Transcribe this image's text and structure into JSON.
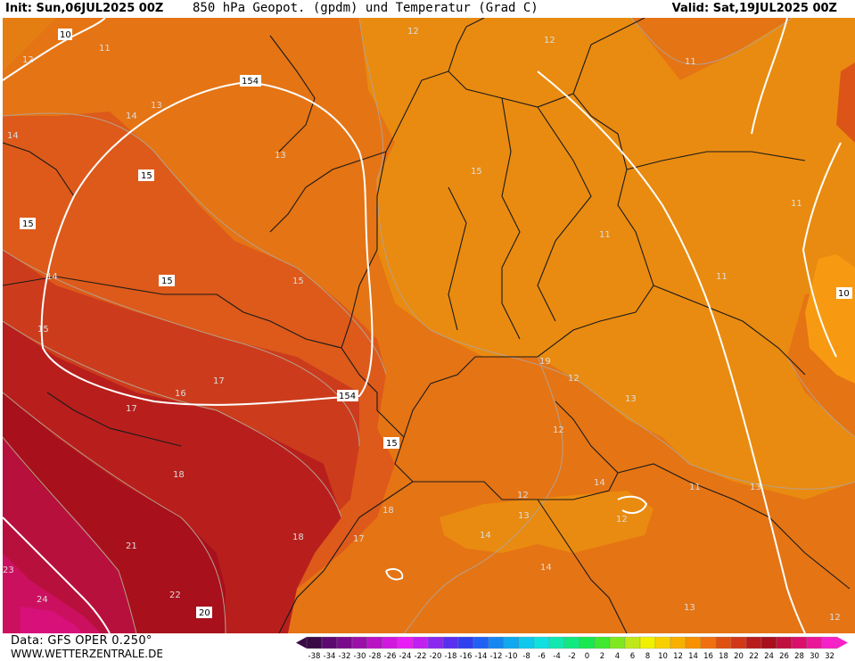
{
  "header": {
    "init_label": "Init: Sun,06JUL2025 00Z",
    "title": "850 hPa Geopot. (gpdm) und Temperatur (Grad C)",
    "valid_label": "Valid: Sat,19JUL2025 00Z"
  },
  "footer": {
    "data_source": "Data: GFS OPER 0.250°",
    "site": "WWW.WETTERZENTRALE.DE"
  },
  "colorbar": {
    "tick_labels": [
      "-38",
      "-34",
      "-32",
      "-30",
      "-28",
      "-26",
      "-24",
      "-22",
      "-20",
      "-18",
      "-16",
      "-14",
      "-12",
      "-10",
      "-8",
      "-6",
      "-4",
      "-2",
      "0",
      "2",
      "4",
      "6",
      "8",
      "10",
      "12",
      "14",
      "16",
      "18",
      "20",
      "22",
      "24",
      "26",
      "28",
      "30",
      "32"
    ],
    "colors": [
      "#3a0a46",
      "#5c0a70",
      "#7a0a8c",
      "#9a10a8",
      "#b814c4",
      "#d018de",
      "#e81ef4",
      "#c020f0",
      "#8a28f0",
      "#5a30f0",
      "#3040f0",
      "#2060f4",
      "#1488f0",
      "#10a8f0",
      "#10c8ec",
      "#10e0e0",
      "#10e8b0",
      "#10e880",
      "#18e850",
      "#40e830",
      "#80e820",
      "#c0e818",
      "#f0f000",
      "#f8d000",
      "#f8b000",
      "#f89000",
      "#f07010",
      "#e05010",
      "#d03818",
      "#b81c1c",
      "#a8101c",
      "#c01040",
      "#d8106a",
      "#e81898",
      "#f820c8"
    ]
  },
  "map": {
    "contour_labels_temperature": [
      "10",
      "11",
      "12",
      "12",
      "12",
      "11",
      "14",
      "13",
      "13",
      "14",
      "15",
      "11",
      "11",
      "11",
      "15",
      "14",
      "15",
      "17",
      "16",
      "17",
      "18",
      "19",
      "12",
      "13",
      "12",
      "14",
      "11",
      "13",
      "12",
      "14",
      "13",
      "12",
      "17",
      "18",
      "18",
      "21",
      "22",
      "23",
      "24",
      "20",
      "14",
      "13",
      "12",
      "10"
    ],
    "contour_labels_geopotential": [
      "154",
      "154",
      "15",
      "15",
      "15",
      "15",
      "20"
    ]
  }
}
